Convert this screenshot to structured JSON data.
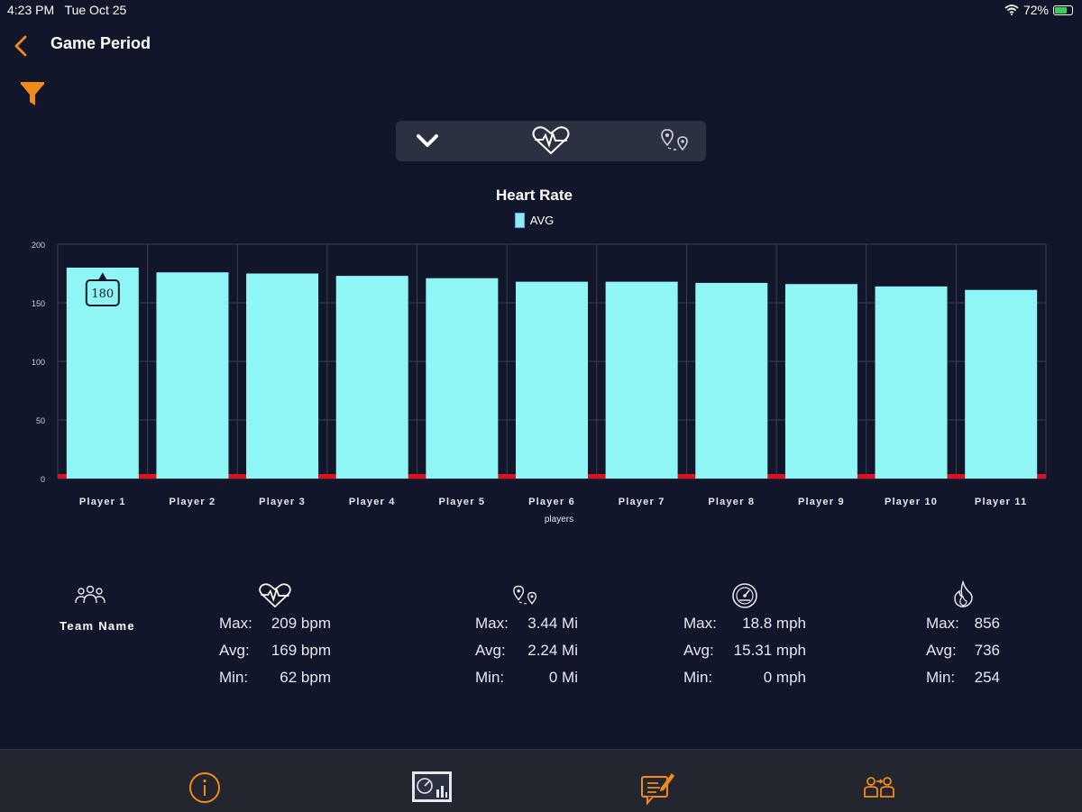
{
  "status_bar": {
    "time": "4:23 PM",
    "date": "Tue Oct 25",
    "battery": "72%",
    "battery_level": 0.72
  },
  "nav": {
    "title": "Game Period",
    "back_icon": "chevron-left-icon",
    "accent": "#f28a1a"
  },
  "segmented_control": [
    "chevron-down-icon",
    "heart-rate-icon",
    "distance-pin-icon"
  ],
  "chart_data": {
    "type": "bar",
    "title": "Heart Rate",
    "legend": "AVG",
    "xlabel": "players",
    "ylabel": "",
    "categories": [
      "Player 1",
      "Player 2",
      "Player 3",
      "Player 4",
      "Player 5",
      "Player 6",
      "Player 7",
      "Player 8",
      "Player 9",
      "Player 10",
      "Player 11"
    ],
    "series": [
      {
        "name": "AVG",
        "values": [
          180,
          176,
          175,
          173,
          171,
          168,
          168,
          167,
          166,
          164,
          161
        ],
        "color": "#8ff5f5"
      }
    ],
    "ylim": [
      0,
      200
    ],
    "yticks": [
      "0",
      "50",
      "100",
      "150",
      "200"
    ],
    "ytick_values": [
      0,
      50,
      100,
      150,
      200
    ],
    "tooltip": {
      "category": "Player 1",
      "value": "180"
    },
    "grid": true,
    "baseline_color": "#e01020"
  },
  "team": {
    "name": "Team Name",
    "icon": "team-icon"
  },
  "stats": {
    "heart_rate": {
      "icon": "heart-rate-icon",
      "max_label": "Max:",
      "max": "209 bpm",
      "avg_label": "Avg:",
      "avg": "169 bpm",
      "min_label": "Min:",
      "min": "62 bpm"
    },
    "distance": {
      "icon": "distance-pin-icon",
      "max_label": "Max:",
      "max": "3.44 Mi",
      "avg_label": "Avg:",
      "avg": "2.24 Mi",
      "min_label": "Min:",
      "min": "0 Mi"
    },
    "speed": {
      "icon": "speedometer-icon",
      "max_label": "Max:",
      "max": "18.8 mph",
      "avg_label": "Avg:",
      "avg": "15.31 mph",
      "min_label": "Min:",
      "min": "0 mph"
    },
    "calories": {
      "icon": "flame-icon",
      "max_label": "Max:",
      "max": "856",
      "avg_label": "Avg:",
      "avg": "736",
      "min_label": "Min:",
      "min": "254"
    }
  },
  "tab_bar": [
    "info-icon",
    "dashboard-icon",
    "notes-icon",
    "players-icon"
  ]
}
